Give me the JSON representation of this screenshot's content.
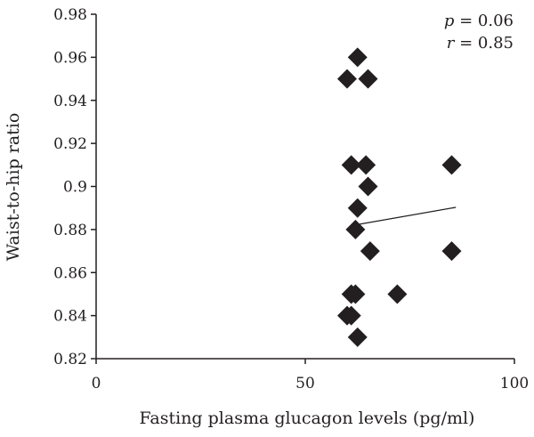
{
  "chart_data": {
    "type": "scatter",
    "title": "",
    "xlabel": "Fasting plasma glucagon levels (pg/ml)",
    "ylabel": "Waist-to-hip ratio",
    "xlim": [
      0,
      100
    ],
    "ylim": [
      0.82,
      0.98
    ],
    "xticks": [
      0,
      50,
      100
    ],
    "xtick_labels": [
      "0",
      "50",
      "100"
    ],
    "yticks": [
      0.82,
      0.84,
      0.86,
      0.88,
      0.9,
      0.92,
      0.94,
      0.96,
      0.98
    ],
    "ytick_labels": [
      "0.82",
      "0.84",
      "0.86",
      "0.88",
      "0.9",
      "0.92",
      "0.94",
      "0.96",
      "0.98"
    ],
    "grid": false,
    "marker": "diamond",
    "marker_color": "#231f20",
    "line_color": "#231f20",
    "points": [
      {
        "x": 62.5,
        "y": 0.96
      },
      {
        "x": 60,
        "y": 0.95
      },
      {
        "x": 65,
        "y": 0.95
      },
      {
        "x": 61,
        "y": 0.91
      },
      {
        "x": 64.5,
        "y": 0.91
      },
      {
        "x": 85,
        "y": 0.91
      },
      {
        "x": 65,
        "y": 0.9
      },
      {
        "x": 62.5,
        "y": 0.89
      },
      {
        "x": 62,
        "y": 0.88
      },
      {
        "x": 65.5,
        "y": 0.87
      },
      {
        "x": 85,
        "y": 0.87
      },
      {
        "x": 61,
        "y": 0.85
      },
      {
        "x": 62,
        "y": 0.85
      },
      {
        "x": 72,
        "y": 0.85
      },
      {
        "x": 60,
        "y": 0.84
      },
      {
        "x": 61,
        "y": 0.84
      },
      {
        "x": 62.5,
        "y": 0.83
      }
    ],
    "trendline": {
      "x": [
        63,
        86
      ],
      "y": [
        0.8825,
        0.8903
      ]
    },
    "annotations": {
      "p_label": "p",
      "p_value": " = 0.06",
      "r_label": "r",
      "r_value": " = 0.85"
    }
  }
}
